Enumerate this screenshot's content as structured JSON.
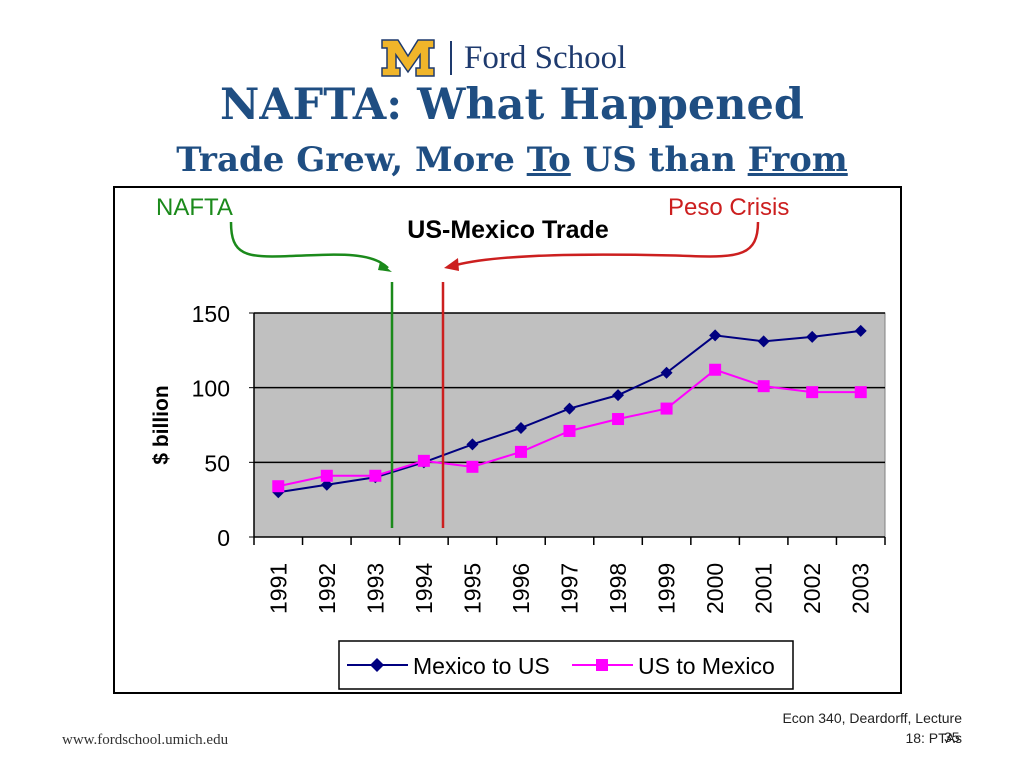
{
  "header": {
    "logo_name": "Ford School",
    "title": "NAFTA: What Happened",
    "subtitle_parts": [
      "Trade Grew, More ",
      "To",
      " US than ",
      "From"
    ]
  },
  "annotations": {
    "nafta_label": "NAFTA",
    "nafta_color": "#1b8a1b",
    "peso_label": "Peso Crisis",
    "peso_color": "#cc1f1f"
  },
  "chart_data": {
    "type": "line",
    "title": "US-Mexico Trade",
    "ylabel": "$ billion",
    "xlabel": "",
    "ylim": [
      0,
      150
    ],
    "yticks": [
      0,
      50,
      100,
      150
    ],
    "categories": [
      "1991",
      "1992",
      "1993",
      "1994",
      "1995",
      "1996",
      "1997",
      "1998",
      "1999",
      "2000",
      "2001",
      "2002",
      "2003"
    ],
    "grid": true,
    "legend_position": "bottom",
    "plot_background": "#c0c0c0",
    "series": [
      {
        "name": "Mexico to US",
        "color": "#000080",
        "marker": "diamond",
        "values": [
          30,
          35,
          40,
          50,
          62,
          73,
          86,
          95,
          110,
          135,
          131,
          134,
          138
        ]
      },
      {
        "name": "US to Mexico",
        "color": "#ff00ff",
        "marker": "square",
        "values": [
          34,
          41,
          41,
          51,
          47,
          57,
          71,
          79,
          86,
          112,
          101,
          97,
          97
        ]
      }
    ]
  },
  "footer": {
    "url": "www.fordschool.umich.edu",
    "credit_line1": "Econ 340, Deardorff, Lecture",
    "credit_line2": "18: PTAs",
    "slide_number": "35"
  }
}
